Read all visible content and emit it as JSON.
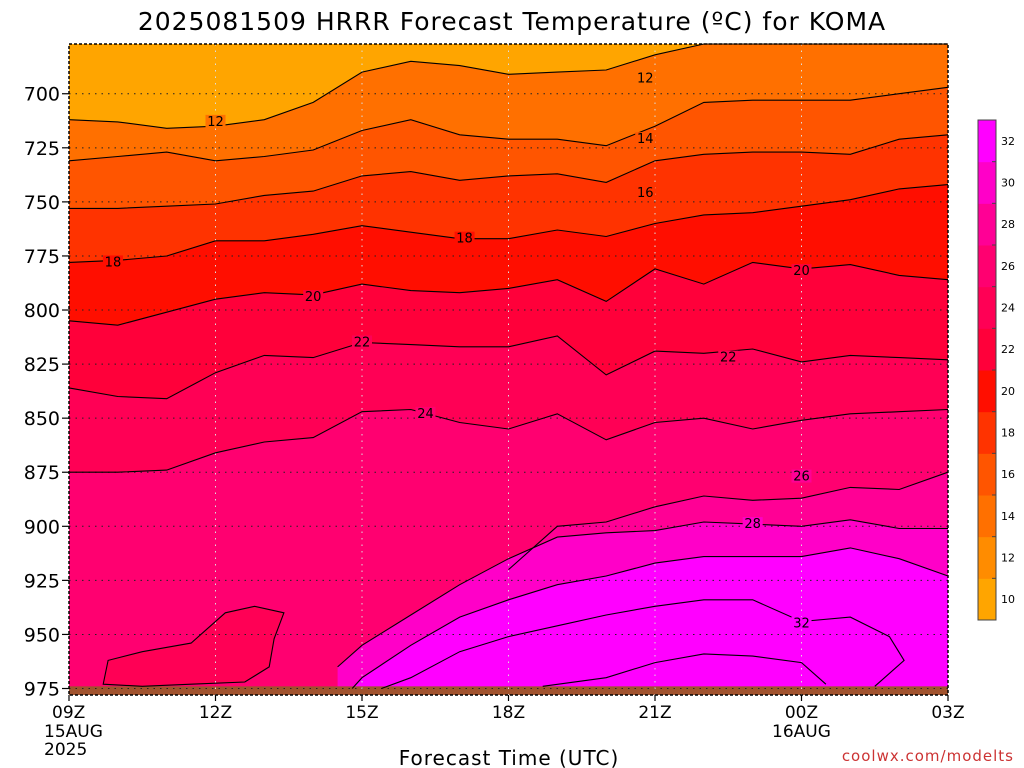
{
  "chart_data": {
    "type": "contour",
    "title": "2025081509 HRRR Forecast Temperature (ºC) for KOMA",
    "xlabel": "Forecast Time (UTC)",
    "ylabel": "",
    "x_ticks": [
      {
        "hour": 0,
        "label": "09Z",
        "sub": [
          "15AUG",
          "2025"
        ]
      },
      {
        "hour": 3,
        "label": "12Z",
        "sub": []
      },
      {
        "hour": 6,
        "label": "15Z",
        "sub": []
      },
      {
        "hour": 9,
        "label": "18Z",
        "sub": []
      },
      {
        "hour": 12,
        "label": "21Z",
        "sub": []
      },
      {
        "hour": 15,
        "label": "00Z",
        "sub": [
          "16AUG"
        ]
      },
      {
        "hour": 18,
        "label": "03Z",
        "sub": []
      }
    ],
    "xlim": [
      0,
      18
    ],
    "y_ticks": [
      700,
      725,
      750,
      775,
      800,
      825,
      850,
      875,
      900,
      925,
      950,
      975
    ],
    "ylim": [
      978,
      677
    ],
    "y_reversed": true,
    "grid": true,
    "ground_level_hpa": 974,
    "contour_levels": [
      12,
      14,
      16,
      18,
      20,
      22,
      24,
      26,
      28,
      30,
      32
    ],
    "colorbar_ticks": [
      10,
      12,
      14,
      16,
      18,
      20,
      22,
      24,
      26,
      28,
      30,
      32
    ],
    "colorbar_colors": [
      "#FFA500",
      "#FF8C00",
      "#FF7000",
      "#FF5500",
      "#FF3300",
      "#FF0E00",
      "#FF003A",
      "#FF0055",
      "#FF0070",
      "#FF0095",
      "#FF00C8",
      "#FF00FF"
    ],
    "contours": [
      {
        "level": 12,
        "label_at": [
          [
            3,
            713
          ],
          [
            11.8,
            693
          ]
        ],
        "points": [
          [
            0,
            712
          ],
          [
            1,
            713
          ],
          [
            2,
            716
          ],
          [
            3,
            715
          ],
          [
            4,
            712
          ],
          [
            5,
            704
          ],
          [
            6,
            690
          ],
          [
            7,
            685
          ],
          [
            8,
            687
          ],
          [
            9,
            691
          ],
          [
            10,
            690
          ],
          [
            11,
            689
          ],
          [
            12,
            682
          ],
          [
            13,
            677
          ],
          [
            14,
            677
          ],
          [
            15,
            677
          ],
          [
            16,
            677
          ],
          [
            17,
            677
          ],
          [
            18,
            677
          ]
        ]
      },
      {
        "level": 14,
        "label_at": [
          [
            11.8,
            721
          ]
        ],
        "points": [
          [
            0,
            731
          ],
          [
            1,
            729
          ],
          [
            2,
            727
          ],
          [
            3,
            731
          ],
          [
            4,
            729
          ],
          [
            5,
            726
          ],
          [
            6,
            717
          ],
          [
            7,
            712
          ],
          [
            8,
            719
          ],
          [
            9,
            721
          ],
          [
            10,
            721
          ],
          [
            11,
            724
          ],
          [
            12,
            715
          ],
          [
            13,
            704
          ],
          [
            14,
            703
          ],
          [
            15,
            703
          ],
          [
            16,
            703
          ],
          [
            17,
            700
          ],
          [
            18,
            697
          ]
        ]
      },
      {
        "level": 16,
        "label_at": [
          [
            11.8,
            746
          ]
        ],
        "points": [
          [
            0,
            753
          ],
          [
            1,
            753
          ],
          [
            2,
            752
          ],
          [
            3,
            751
          ],
          [
            4,
            747
          ],
          [
            5,
            745
          ],
          [
            6,
            738
          ],
          [
            7,
            736
          ],
          [
            8,
            740
          ],
          [
            9,
            738
          ],
          [
            10,
            737
          ],
          [
            11,
            741
          ],
          [
            12,
            731
          ],
          [
            13,
            728
          ],
          [
            14,
            727
          ],
          [
            15,
            727
          ],
          [
            16,
            728
          ],
          [
            17,
            721
          ],
          [
            18,
            719
          ]
        ]
      },
      {
        "level": 18,
        "label_at": [
          [
            0.9,
            778
          ],
          [
            8.1,
            767
          ]
        ],
        "points": [
          [
            0,
            778
          ],
          [
            1,
            777
          ],
          [
            2,
            775
          ],
          [
            3,
            768
          ],
          [
            4,
            768
          ],
          [
            5,
            765
          ],
          [
            6,
            761
          ],
          [
            7,
            764
          ],
          [
            8,
            767
          ],
          [
            9,
            767
          ],
          [
            10,
            763
          ],
          [
            11,
            766
          ],
          [
            12,
            760
          ],
          [
            13,
            756
          ],
          [
            14,
            755
          ],
          [
            15,
            752
          ],
          [
            16,
            749
          ],
          [
            17,
            744
          ],
          [
            18,
            742
          ]
        ]
      },
      {
        "level": 20,
        "label_at": [
          [
            5,
            794
          ],
          [
            15,
            782
          ]
        ],
        "points": [
          [
            0,
            805
          ],
          [
            1,
            807
          ],
          [
            2,
            801
          ],
          [
            3,
            795
          ],
          [
            4,
            792
          ],
          [
            5,
            793
          ],
          [
            6,
            788
          ],
          [
            7,
            791
          ],
          [
            8,
            792
          ],
          [
            9,
            790
          ],
          [
            10,
            786
          ],
          [
            11,
            796
          ],
          [
            12,
            781
          ],
          [
            13,
            788
          ],
          [
            14,
            778
          ],
          [
            15,
            781
          ],
          [
            16,
            779
          ],
          [
            17,
            784
          ],
          [
            18,
            786
          ]
        ]
      },
      {
        "level": 22,
        "label_at": [
          [
            6,
            815
          ],
          [
            13.5,
            822
          ]
        ],
        "points": [
          [
            0,
            836
          ],
          [
            1,
            840
          ],
          [
            2,
            841
          ],
          [
            3,
            829
          ],
          [
            4,
            821
          ],
          [
            5,
            822
          ],
          [
            6,
            815
          ],
          [
            7,
            816
          ],
          [
            8,
            817
          ],
          [
            9,
            817
          ],
          [
            10,
            812
          ],
          [
            11,
            830
          ],
          [
            12,
            819
          ],
          [
            13,
            820
          ],
          [
            14,
            818
          ],
          [
            15,
            824
          ],
          [
            16,
            821
          ],
          [
            17,
            822
          ],
          [
            18,
            823
          ]
        ]
      },
      {
        "level": 24,
        "label_at": [
          [
            7.3,
            848
          ]
        ],
        "points": [
          [
            0,
            875
          ],
          [
            1,
            875
          ],
          [
            2,
            874
          ],
          [
            3,
            866
          ],
          [
            4,
            861
          ],
          [
            5,
            859
          ],
          [
            6,
            847
          ],
          [
            7,
            846
          ],
          [
            8,
            852
          ],
          [
            9,
            855
          ],
          [
            10,
            848
          ],
          [
            11,
            860
          ],
          [
            12,
            852
          ],
          [
            13,
            850
          ],
          [
            14,
            855
          ],
          [
            15,
            851
          ],
          [
            16,
            848
          ],
          [
            17,
            847
          ],
          [
            18,
            846
          ]
        ]
      },
      {
        "level": 26,
        "label_at": [
          [
            15,
            877
          ]
        ],
        "points": [
          [
            9,
            920
          ],
          [
            10,
            900
          ],
          [
            11,
            898
          ],
          [
            12,
            891
          ],
          [
            13,
            886
          ],
          [
            14,
            888
          ],
          [
            15,
            887
          ],
          [
            16,
            882
          ],
          [
            17,
            883
          ],
          [
            18,
            875
          ]
        ]
      },
      {
        "level": 28,
        "label_at": [
          [
            14,
            899
          ]
        ],
        "points": [
          [
            5.5,
            965
          ],
          [
            6,
            955
          ],
          [
            7,
            941
          ],
          [
            8,
            927
          ],
          [
            9,
            915
          ],
          [
            10,
            905
          ],
          [
            11,
            903
          ],
          [
            12,
            902
          ],
          [
            13,
            898
          ],
          [
            14,
            899
          ],
          [
            15,
            900
          ],
          [
            16,
            897
          ],
          [
            17,
            901
          ],
          [
            18,
            901
          ]
        ]
      },
      {
        "level": 30,
        "label_at": [],
        "points": [
          [
            5.8,
            975
          ],
          [
            6,
            970
          ],
          [
            7,
            955
          ],
          [
            8,
            942
          ],
          [
            9,
            934
          ],
          [
            10,
            927
          ],
          [
            11,
            923
          ],
          [
            12,
            917
          ],
          [
            13,
            914
          ],
          [
            14,
            914
          ],
          [
            15,
            914
          ],
          [
            16,
            910
          ],
          [
            17,
            915
          ],
          [
            18,
            923
          ]
        ]
      },
      {
        "level": 32,
        "label_at": [
          [
            15,
            945
          ]
        ],
        "points": [
          [
            6.4,
            975
          ],
          [
            7,
            970
          ],
          [
            8,
            958
          ],
          [
            9,
            951
          ],
          [
            10,
            946
          ],
          [
            11,
            941
          ],
          [
            12,
            937
          ],
          [
            13,
            934
          ],
          [
            14,
            934
          ],
          [
            15,
            944
          ],
          [
            16,
            942
          ],
          [
            16.8,
            951
          ],
          [
            17.1,
            962
          ],
          [
            16.5,
            974
          ]
        ]
      }
    ],
    "islands": [
      {
        "level": 24,
        "label": "",
        "points": [
          [
            0.7,
            973
          ],
          [
            0.8,
            962
          ],
          [
            1.5,
            958
          ],
          [
            2.5,
            954
          ],
          [
            3.2,
            940
          ],
          [
            3.8,
            937
          ],
          [
            4.4,
            940
          ],
          [
            4.2,
            952
          ],
          [
            4.1,
            965
          ],
          [
            3.6,
            972
          ],
          [
            2.5,
            973
          ],
          [
            1.5,
            974
          ]
        ]
      },
      {
        "level": 34,
        "label": "",
        "points": [
          [
            9.7,
            974
          ],
          [
            11,
            970
          ],
          [
            12,
            963
          ],
          [
            13,
            959
          ],
          [
            14,
            960
          ],
          [
            15,
            963
          ],
          [
            15.5,
            973
          ]
        ]
      }
    ],
    "credit": "coolwx.com/modelts"
  }
}
